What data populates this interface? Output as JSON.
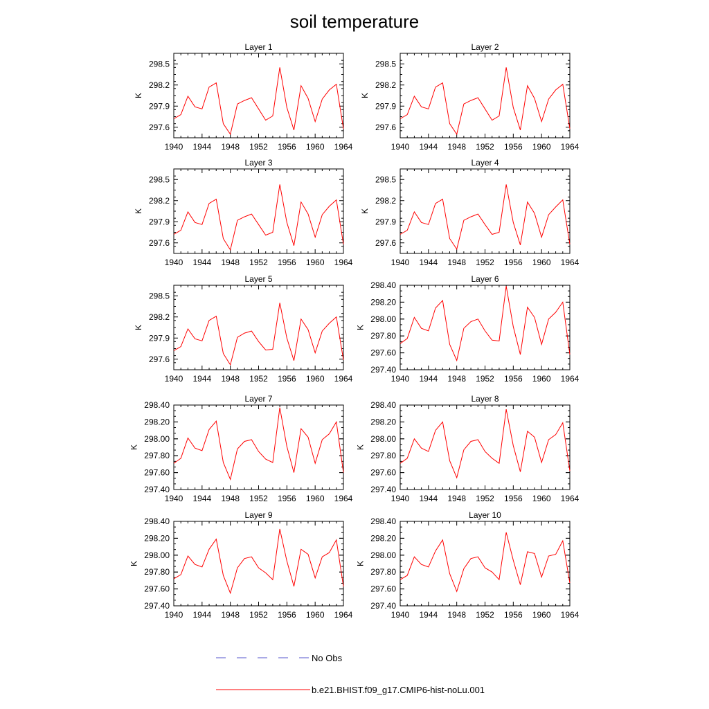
{
  "title": "soil temperature",
  "chart_data": {
    "type": "line",
    "x_ticks": [
      "1940",
      "1944",
      "1948",
      "1952",
      "1956",
      "1960",
      "1964"
    ],
    "x": [
      1940,
      1941,
      1942,
      1943,
      1944,
      1945,
      1946,
      1947,
      1948,
      1949,
      1950,
      1951,
      1952,
      1953,
      1954,
      1955,
      1956,
      1957,
      1958,
      1959,
      1960,
      1961,
      1962,
      1963,
      1964
    ],
    "xlim": [
      1940,
      1964
    ],
    "panels": [
      {
        "title": "Layer 1",
        "ylabel": "K",
        "ylim": [
          297.45,
          298.65
        ],
        "yticks": [
          "297.6",
          "297.9",
          "298.2",
          "298.5"
        ],
        "series": [
          {
            "name": "b.e21.BHIST.f09_g17.CMIP6-hist-noLu.001",
            "values": [
              297.72,
              297.78,
              298.04,
              297.89,
              297.86,
              298.17,
              298.23,
              297.65,
              297.5,
              297.93,
              297.98,
              298.02,
              297.86,
              297.7,
              297.76,
              298.45,
              297.88,
              297.56,
              298.19,
              298.01,
              297.68,
              298.0,
              298.13,
              298.21,
              297.58
            ]
          }
        ]
      },
      {
        "title": "Layer 2",
        "ylabel": "K",
        "ylim": [
          297.45,
          298.65
        ],
        "yticks": [
          "297.6",
          "297.9",
          "298.2",
          "298.5"
        ],
        "series": [
          {
            "name": "b.e21.BHIST.f09_g17.CMIP6-hist-noLu.001",
            "values": [
              297.72,
              297.78,
              298.04,
              297.89,
              297.86,
              298.17,
              298.23,
              297.65,
              297.5,
              297.93,
              297.98,
              298.02,
              297.86,
              297.7,
              297.76,
              298.45,
              297.88,
              297.56,
              298.19,
              298.01,
              297.68,
              298.0,
              298.13,
              298.21,
              297.58
            ]
          }
        ]
      },
      {
        "title": "Layer 3",
        "ylabel": "K",
        "ylim": [
          297.45,
          298.65
        ],
        "yticks": [
          "297.6",
          "297.9",
          "298.2",
          "298.5"
        ],
        "series": [
          {
            "name": "b.e21.BHIST.f09_g17.CMIP6-hist-noLu.001",
            "values": [
              297.72,
              297.78,
              298.04,
              297.89,
              297.86,
              298.16,
              298.22,
              297.66,
              297.5,
              297.92,
              297.97,
              298.01,
              297.86,
              297.71,
              297.75,
              298.43,
              297.89,
              297.56,
              298.18,
              298.01,
              297.68,
              298.0,
              298.12,
              298.21,
              297.58
            ]
          }
        ]
      },
      {
        "title": "Layer 4",
        "ylabel": "K",
        "ylim": [
          297.45,
          298.65
        ],
        "yticks": [
          "297.6",
          "297.9",
          "298.2",
          "298.5"
        ],
        "series": [
          {
            "name": "b.e21.BHIST.f09_g17.CMIP6-hist-noLu.001",
            "values": [
              297.72,
              297.78,
              298.04,
              297.89,
              297.86,
              298.16,
              298.22,
              297.66,
              297.51,
              297.92,
              297.97,
              298.01,
              297.86,
              297.72,
              297.75,
              298.43,
              297.89,
              297.57,
              298.18,
              298.02,
              297.68,
              298.0,
              298.11,
              298.21,
              297.58
            ]
          }
        ]
      },
      {
        "title": "Layer 5",
        "ylabel": "K",
        "ylim": [
          297.45,
          298.65
        ],
        "yticks": [
          "297.6",
          "297.9",
          "298.2",
          "298.5"
        ],
        "series": [
          {
            "name": "b.e21.BHIST.f09_g17.CMIP6-hist-noLu.001",
            "values": [
              297.72,
              297.78,
              298.03,
              297.89,
              297.86,
              298.15,
              298.21,
              297.68,
              297.52,
              297.91,
              297.97,
              298.0,
              297.85,
              297.73,
              297.74,
              298.4,
              297.9,
              297.58,
              298.17,
              298.02,
              297.69,
              298.0,
              298.11,
              298.2,
              297.59
            ]
          }
        ]
      },
      {
        "title": "Layer 6",
        "ylabel": "K",
        "ylim": [
          297.4,
          298.4
        ],
        "yticks": [
          "297.40",
          "297.60",
          "297.80",
          "298.00",
          "298.20",
          "298.40"
        ],
        "series": [
          {
            "name": "b.e21.BHIST.f09_g17.CMIP6-hist-noLu.001",
            "values": [
              297.71,
              297.77,
              298.02,
              297.89,
              297.86,
              298.13,
              298.22,
              297.7,
              297.51,
              297.89,
              297.97,
              298.0,
              297.86,
              297.75,
              297.74,
              298.39,
              297.91,
              297.58,
              298.14,
              298.02,
              297.7,
              298.0,
              298.08,
              298.2,
              297.58
            ]
          }
        ]
      },
      {
        "title": "Layer 7",
        "ylabel": "K",
        "ylim": [
          297.4,
          298.4
        ],
        "yticks": [
          "297.40",
          "297.60",
          "297.80",
          "298.00",
          "298.20",
          "298.40"
        ],
        "series": [
          {
            "name": "b.e21.BHIST.f09_g17.CMIP6-hist-noLu.001",
            "values": [
              297.71,
              297.77,
              298.01,
              297.89,
              297.86,
              298.11,
              298.21,
              297.72,
              297.52,
              297.88,
              297.97,
              297.99,
              297.85,
              297.76,
              297.72,
              298.37,
              297.91,
              297.6,
              298.12,
              298.02,
              297.71,
              297.99,
              298.06,
              298.2,
              297.6
            ]
          }
        ]
      },
      {
        "title": "Layer 8",
        "ylabel": "K",
        "ylim": [
          297.4,
          298.4
        ],
        "yticks": [
          "297.40",
          "297.60",
          "297.80",
          "298.00",
          "298.20",
          "298.40"
        ],
        "series": [
          {
            "name": "b.e21.BHIST.f09_g17.CMIP6-hist-noLu.001",
            "values": [
              297.71,
              297.77,
              298.0,
              297.89,
              297.85,
              298.1,
              298.2,
              297.74,
              297.54,
              297.87,
              297.97,
              297.99,
              297.85,
              297.77,
              297.71,
              298.35,
              297.92,
              297.61,
              298.09,
              298.02,
              297.72,
              297.99,
              298.05,
              298.19,
              297.62
            ]
          }
        ]
      },
      {
        "title": "Layer 9",
        "ylabel": "K",
        "ylim": [
          297.4,
          298.4
        ],
        "yticks": [
          "297.40",
          "297.60",
          "297.80",
          "298.00",
          "298.20",
          "298.40"
        ],
        "series": [
          {
            "name": "b.e21.BHIST.f09_g17.CMIP6-hist-noLu.001",
            "values": [
              297.72,
              297.77,
              297.99,
              297.89,
              297.86,
              298.07,
              298.19,
              297.76,
              297.55,
              297.85,
              297.96,
              297.98,
              297.85,
              297.79,
              297.71,
              298.31,
              297.93,
              297.63,
              298.07,
              298.01,
              297.73,
              297.98,
              298.03,
              298.18,
              297.63
            ]
          }
        ]
      },
      {
        "title": "Layer 10",
        "ylabel": "K",
        "ylim": [
          297.4,
          298.4
        ],
        "yticks": [
          "297.40",
          "297.60",
          "297.80",
          "298.00",
          "298.20",
          "298.40"
        ],
        "series": [
          {
            "name": "b.e21.BHIST.f09_g17.CMIP6-hist-noLu.001",
            "values": [
              297.71,
              297.76,
              297.98,
              297.89,
              297.86,
              298.05,
              298.18,
              297.78,
              297.57,
              297.84,
              297.96,
              297.98,
              297.85,
              297.8,
              297.71,
              298.27,
              297.94,
              297.65,
              298.04,
              298.02,
              297.74,
              297.99,
              298.01,
              298.17,
              297.67
            ]
          }
        ]
      }
    ],
    "legend": [
      {
        "label": "No Obs",
        "color": "#5555cc",
        "style": "dashed"
      },
      {
        "label": "b.e21.BHIST.f09_g17.CMIP6-hist-noLu.001",
        "color": "#ff0000",
        "style": "solid"
      }
    ],
    "grid": false,
    "legend_position": "bottom"
  }
}
